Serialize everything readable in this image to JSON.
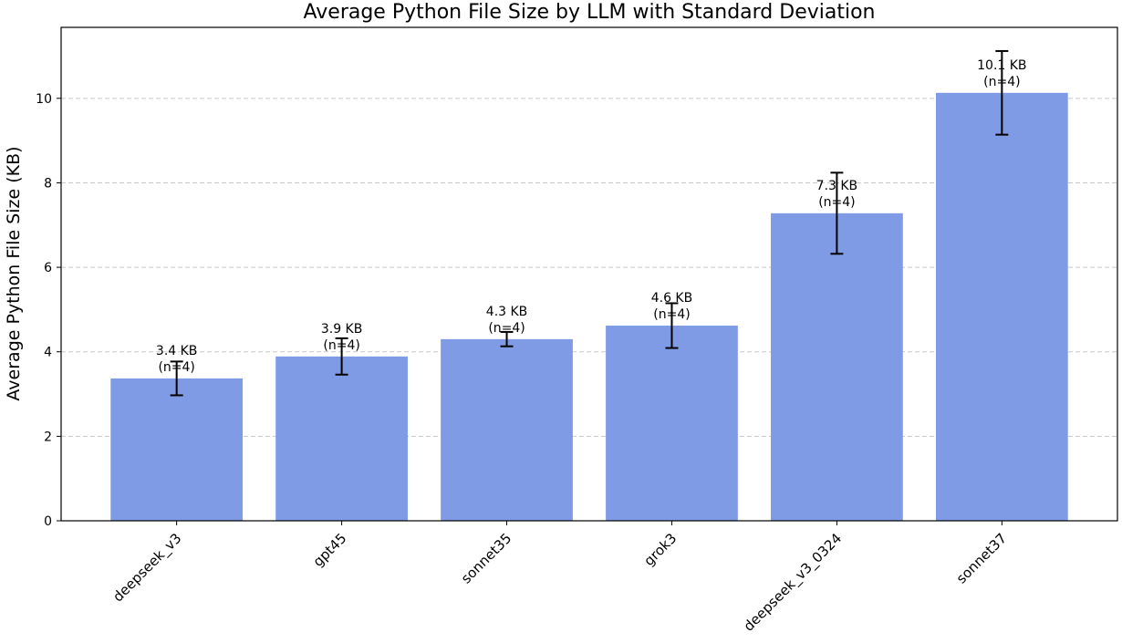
{
  "chart_data": {
    "type": "bar",
    "title": "Average Python File Size by LLM with Standard Deviation",
    "xlabel": "",
    "ylabel": "Average Python File Size (KB)",
    "categories": [
      "deepseek_v3",
      "gpt45",
      "sonnet35",
      "grok3",
      "deepseek_v3_0324",
      "sonnet37"
    ],
    "values": [
      3.37,
      3.89,
      4.3,
      4.62,
      7.28,
      10.13
    ],
    "errors": [
      0.4,
      0.43,
      0.17,
      0.53,
      0.96,
      0.99
    ],
    "data_labels": [
      [
        "3.4 KB",
        "(n=4)"
      ],
      [
        "3.9 KB",
        "(n=4)"
      ],
      [
        "4.3 KB",
        "(n=4)"
      ],
      [
        "4.6 KB",
        "(n=4)"
      ],
      [
        "7.3 KB",
        "(n=4)"
      ],
      [
        "10.1 KB",
        "(n=4)"
      ]
    ],
    "ylim": [
      0,
      11.68
    ],
    "yticks": [
      "0",
      "2",
      "4",
      "6",
      "8",
      "10"
    ],
    "grid": "y-dashed",
    "bar_color": "#7f9be5",
    "legend": "none"
  }
}
